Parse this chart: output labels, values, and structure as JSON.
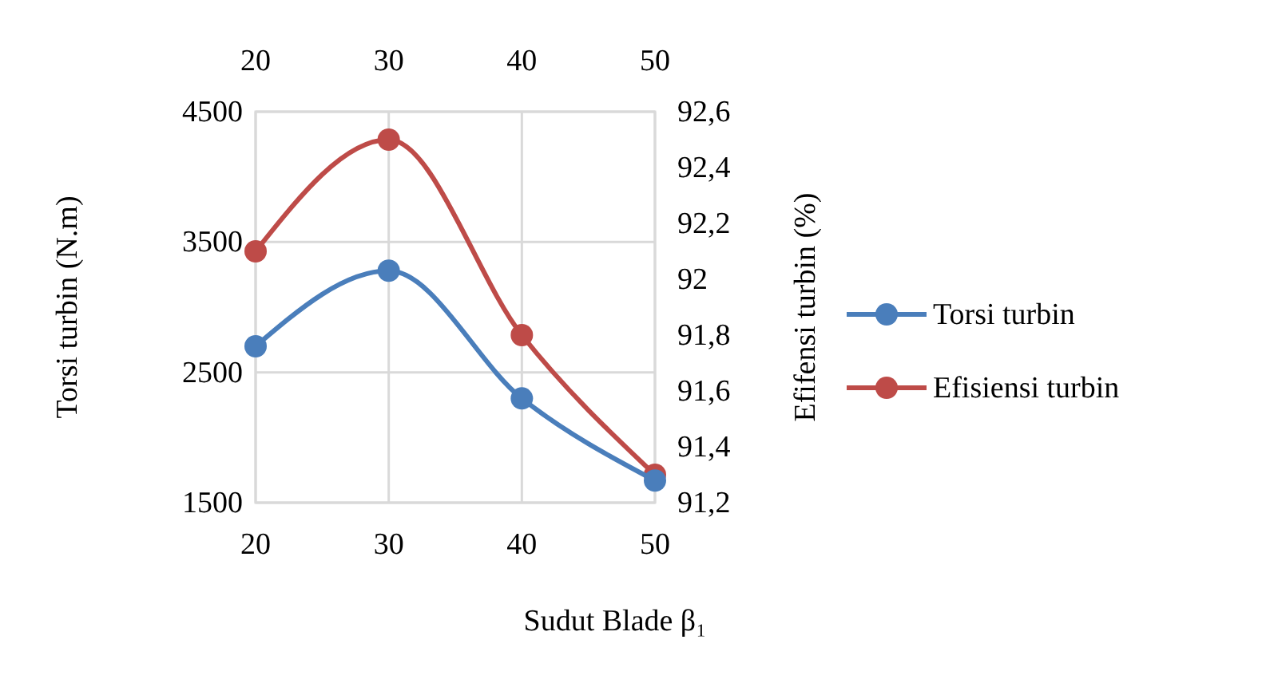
{
  "chart_data": {
    "type": "line",
    "xlabel": "Sudut Blade β₁",
    "ylabel": "Torsi turbin (N.m)",
    "y2label": "Efifensi  turbin (%)",
    "x": [
      20,
      30,
      40,
      50
    ],
    "series": [
      {
        "name": "Torsi turbin",
        "color": "#4a7ebb",
        "values": [
          2700,
          3280,
          2300,
          1670
        ]
      },
      {
        "name": "Efisiensi turbin",
        "color": "#be4b48",
        "values": [
          92.1,
          92.5,
          91.8,
          91.3
        ],
        "axis": "y2"
      }
    ],
    "xlim": [
      20,
      50
    ],
    "xticks": [
      20,
      30,
      40,
      50
    ],
    "x2lim": [
      20,
      50
    ],
    "x2ticks": [
      20,
      30,
      40,
      50
    ],
    "ylim": [
      1500,
      4500
    ],
    "yticks": [
      1500,
      2500,
      3500,
      4500
    ],
    "y2lim": [
      91.2,
      92.6
    ],
    "y2ticks": [
      {
        "value": 91.2,
        "label": "91,2"
      },
      {
        "value": 91.4,
        "label": "91,4"
      },
      {
        "value": 91.6,
        "label": "91,6"
      },
      {
        "value": 91.8,
        "label": "91,8"
      },
      92,
      {
        "value": 92.2,
        "label": "92,2"
      },
      {
        "value": 92.4,
        "label": "92,4"
      },
      {
        "value": 92.6,
        "label": "92,6"
      }
    ],
    "grid": true,
    "legend": "right",
    "marker": "circle",
    "line_style": "solid"
  }
}
